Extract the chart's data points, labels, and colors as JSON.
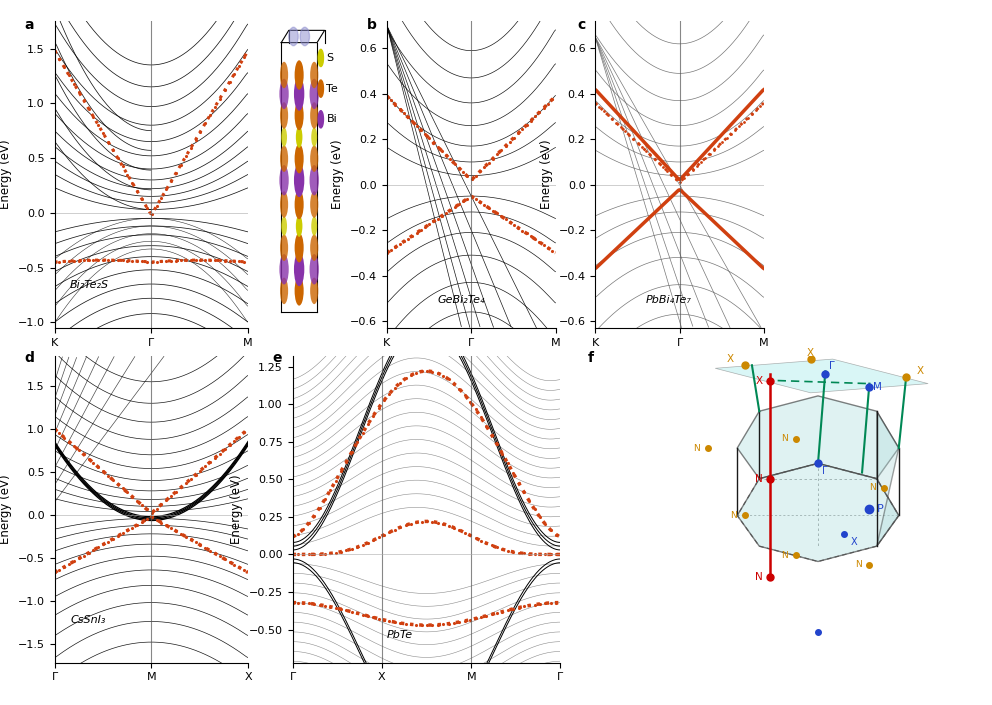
{
  "panel_labels": [
    "a",
    "b",
    "c",
    "d",
    "e",
    "f"
  ],
  "panel_label_fontsize": 10,
  "panel_label_weight": "bold",
  "compounds": {
    "a": "Bi₂Te₂S",
    "b": "GeBi₂Te₄",
    "c": "PbBi₄Te₇",
    "d": "CsSnI₃",
    "e": "PbTe"
  },
  "x_ticks_abc": [
    "K",
    "Γ",
    "M"
  ],
  "x_ticks_d": [
    "Γ",
    "M",
    "X"
  ],
  "x_ticks_e": [
    "Γ",
    "X",
    "M",
    "Γ"
  ],
  "y_label": "Energy (eV)",
  "ylim_a": [
    -1.05,
    1.75
  ],
  "ylim_b": [
    -0.63,
    0.72
  ],
  "ylim_c": [
    -0.63,
    0.72
  ],
  "ylim_d": [
    -1.72,
    1.85
  ],
  "ylim_e": [
    -0.72,
    1.32
  ],
  "surface_band_color": "#d04010",
  "legend_s_color": "#cccc00",
  "legend_te_color": "#cc6600",
  "legend_bi_color": "#8833aa"
}
